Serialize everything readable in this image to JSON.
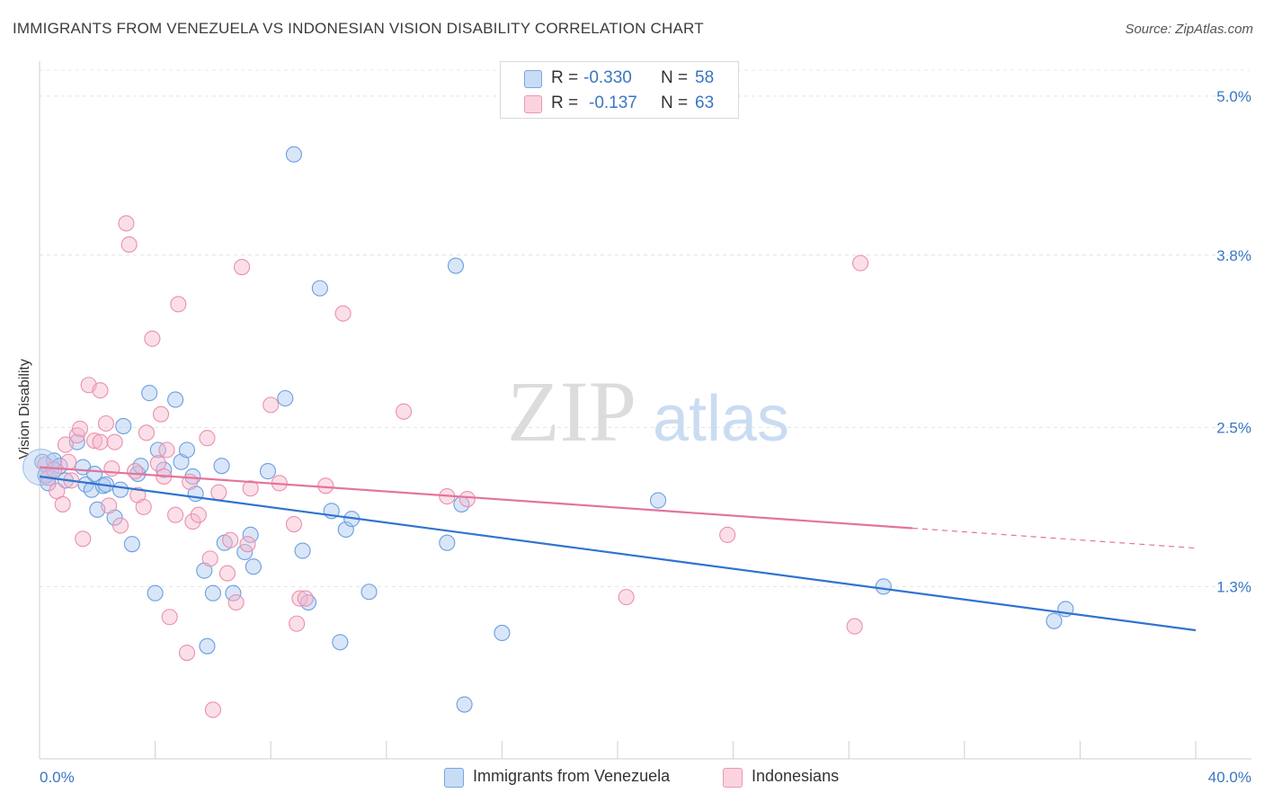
{
  "header": {
    "title": "IMMIGRANTS FROM VENEZUELA VS INDONESIAN VISION DISABILITY CORRELATION CHART",
    "source": "Source: ZipAtlas.com"
  },
  "watermark": {
    "zip": "ZIP",
    "atlas": "atlas"
  },
  "stats": {
    "rows": [
      {
        "r_label": "R =",
        "r_value": "-0.330",
        "n_label": "N =",
        "n_value": "58",
        "color": "#aac8f0"
      },
      {
        "r_label": "R =",
        "r_value": "-0.137",
        "n_label": "N =",
        "n_value": "63",
        "color": "#f7b9cc"
      }
    ]
  },
  "legend": {
    "items": [
      {
        "label": "Immigrants from Venezuela",
        "color": "#aac8f0"
      },
      {
        "label": "Indonesians",
        "color": "#f7b9cc"
      }
    ]
  },
  "chart_data": {
    "type": "scatter",
    "title": "IMMIGRANTS FROM VENEZUELA VS INDONESIAN VISION DISABILITY CORRELATION CHART",
    "xlabel": "",
    "ylabel": "Vision Disability",
    "xlim": [
      0,
      40
    ],
    "ylim": [
      0,
      5.25
    ],
    "x_tick_labels": [
      {
        "value": 0,
        "label": "0.0%"
      },
      {
        "value": 40,
        "label": "40.0%"
      }
    ],
    "x_minor_ticks": [
      4,
      8,
      12,
      16,
      20,
      24,
      28,
      32,
      36
    ],
    "y_ticks": [
      {
        "value": 1.3,
        "label": "1.3%"
      },
      {
        "value": 2.5,
        "label": "2.5%"
      },
      {
        "value": 3.8,
        "label": "3.8%"
      },
      {
        "value": 5.0,
        "label": "5.0%"
      }
    ],
    "grid": true,
    "legend_position": "bottom-center",
    "series": [
      {
        "name": "Immigrants from Venezuela",
        "color": "#6a9fdf",
        "fill": "#aac8f0",
        "line_color": "#2f74cf",
        "trend": {
          "x0": 0,
          "y0": 2.13,
          "x1": 40,
          "y1": 0.97
        },
        "points": [
          [
            0.1,
            2.24
          ],
          [
            0.3,
            2.08
          ],
          [
            0.5,
            2.25
          ],
          [
            0.7,
            2.21
          ],
          [
            0.9,
            2.1
          ],
          [
            1.3,
            2.39
          ],
          [
            1.5,
            2.2
          ],
          [
            1.6,
            2.07
          ],
          [
            1.8,
            2.03
          ],
          [
            1.9,
            2.15
          ],
          [
            2.0,
            1.88
          ],
          [
            2.2,
            2.06
          ],
          [
            2.3,
            2.07
          ],
          [
            2.6,
            1.82
          ],
          [
            2.8,
            2.03
          ],
          [
            2.9,
            2.51
          ],
          [
            3.2,
            1.62
          ],
          [
            3.4,
            2.15
          ],
          [
            3.5,
            2.21
          ],
          [
            3.8,
            2.76
          ],
          [
            4.0,
            1.25
          ],
          [
            4.1,
            2.33
          ],
          [
            4.3,
            2.18
          ],
          [
            4.7,
            2.71
          ],
          [
            4.9,
            2.24
          ],
          [
            5.1,
            2.33
          ],
          [
            5.3,
            2.13
          ],
          [
            5.4,
            2.0
          ],
          [
            5.7,
            1.42
          ],
          [
            5.8,
            0.85
          ],
          [
            6.0,
            1.25
          ],
          [
            6.3,
            2.21
          ],
          [
            6.4,
            1.63
          ],
          [
            6.7,
            1.25
          ],
          [
            7.1,
            1.56
          ],
          [
            7.3,
            1.69
          ],
          [
            7.4,
            1.45
          ],
          [
            7.9,
            2.17
          ],
          [
            8.5,
            2.72
          ],
          [
            8.8,
            4.56
          ],
          [
            9.1,
            1.57
          ],
          [
            9.3,
            1.18
          ],
          [
            9.7,
            3.55
          ],
          [
            10.1,
            1.87
          ],
          [
            10.4,
            0.88
          ],
          [
            10.6,
            1.73
          ],
          [
            10.8,
            1.81
          ],
          [
            11.4,
            1.26
          ],
          [
            14.1,
            1.63
          ],
          [
            14.4,
            3.72
          ],
          [
            14.6,
            1.92
          ],
          [
            16.0,
            0.95
          ],
          [
            14.7,
            0.41
          ],
          [
            21.4,
            1.95
          ],
          [
            29.2,
            1.3
          ],
          [
            35.1,
            1.04
          ],
          [
            35.5,
            1.13
          ],
          [
            0.2,
            2.14
          ]
        ]
      },
      {
        "name": "Indonesians",
        "color": "#ea8fae",
        "fill": "#f7b9cc",
        "line_color": "#e4739b",
        "trend": {
          "x0": 0,
          "y0": 2.2,
          "x1": 30.2,
          "y1": 1.74
        },
        "trend_dashed": {
          "x0": 30.2,
          "y0": 1.74,
          "x1": 40,
          "y1": 1.59
        },
        "points": [
          [
            0.2,
            2.22
          ],
          [
            0.3,
            2.12
          ],
          [
            0.5,
            2.18
          ],
          [
            0.6,
            2.02
          ],
          [
            0.8,
            1.92
          ],
          [
            0.9,
            2.37
          ],
          [
            1.0,
            2.24
          ],
          [
            1.1,
            2.1
          ],
          [
            1.3,
            2.44
          ],
          [
            1.4,
            2.49
          ],
          [
            1.5,
            1.66
          ],
          [
            1.7,
            2.82
          ],
          [
            1.9,
            2.4
          ],
          [
            2.1,
            2.39
          ],
          [
            2.1,
            2.78
          ],
          [
            2.3,
            2.53
          ],
          [
            2.4,
            1.91
          ],
          [
            2.5,
            2.19
          ],
          [
            2.6,
            2.39
          ],
          [
            2.8,
            1.76
          ],
          [
            3.0,
            4.04
          ],
          [
            3.1,
            3.88
          ],
          [
            3.3,
            2.17
          ],
          [
            3.4,
            1.99
          ],
          [
            3.6,
            1.9
          ],
          [
            3.7,
            2.46
          ],
          [
            3.9,
            3.17
          ],
          [
            4.1,
            2.23
          ],
          [
            4.2,
            2.6
          ],
          [
            4.3,
            2.13
          ],
          [
            4.4,
            2.33
          ],
          [
            4.5,
            1.07
          ],
          [
            4.7,
            1.84
          ],
          [
            4.8,
            3.43
          ],
          [
            5.1,
            0.8
          ],
          [
            5.2,
            2.09
          ],
          [
            5.3,
            1.79
          ],
          [
            5.5,
            1.84
          ],
          [
            5.8,
            2.42
          ],
          [
            5.9,
            1.51
          ],
          [
            6.0,
            0.37
          ],
          [
            6.2,
            2.01
          ],
          [
            6.5,
            1.4
          ],
          [
            6.6,
            1.65
          ],
          [
            6.8,
            1.18
          ],
          [
            7.0,
            3.71
          ],
          [
            7.2,
            1.62
          ],
          [
            7.3,
            2.04
          ],
          [
            8.0,
            2.67
          ],
          [
            8.3,
            2.08
          ],
          [
            8.8,
            1.77
          ],
          [
            8.9,
            1.02
          ],
          [
            9.0,
            1.21
          ],
          [
            9.2,
            1.21
          ],
          [
            9.9,
            2.06
          ],
          [
            10.5,
            3.36
          ],
          [
            12.6,
            2.62
          ],
          [
            14.1,
            1.98
          ],
          [
            14.8,
            1.96
          ],
          [
            20.3,
            1.22
          ],
          [
            23.8,
            1.69
          ],
          [
            28.2,
            1.0
          ],
          [
            28.4,
            3.74
          ]
        ]
      }
    ]
  }
}
